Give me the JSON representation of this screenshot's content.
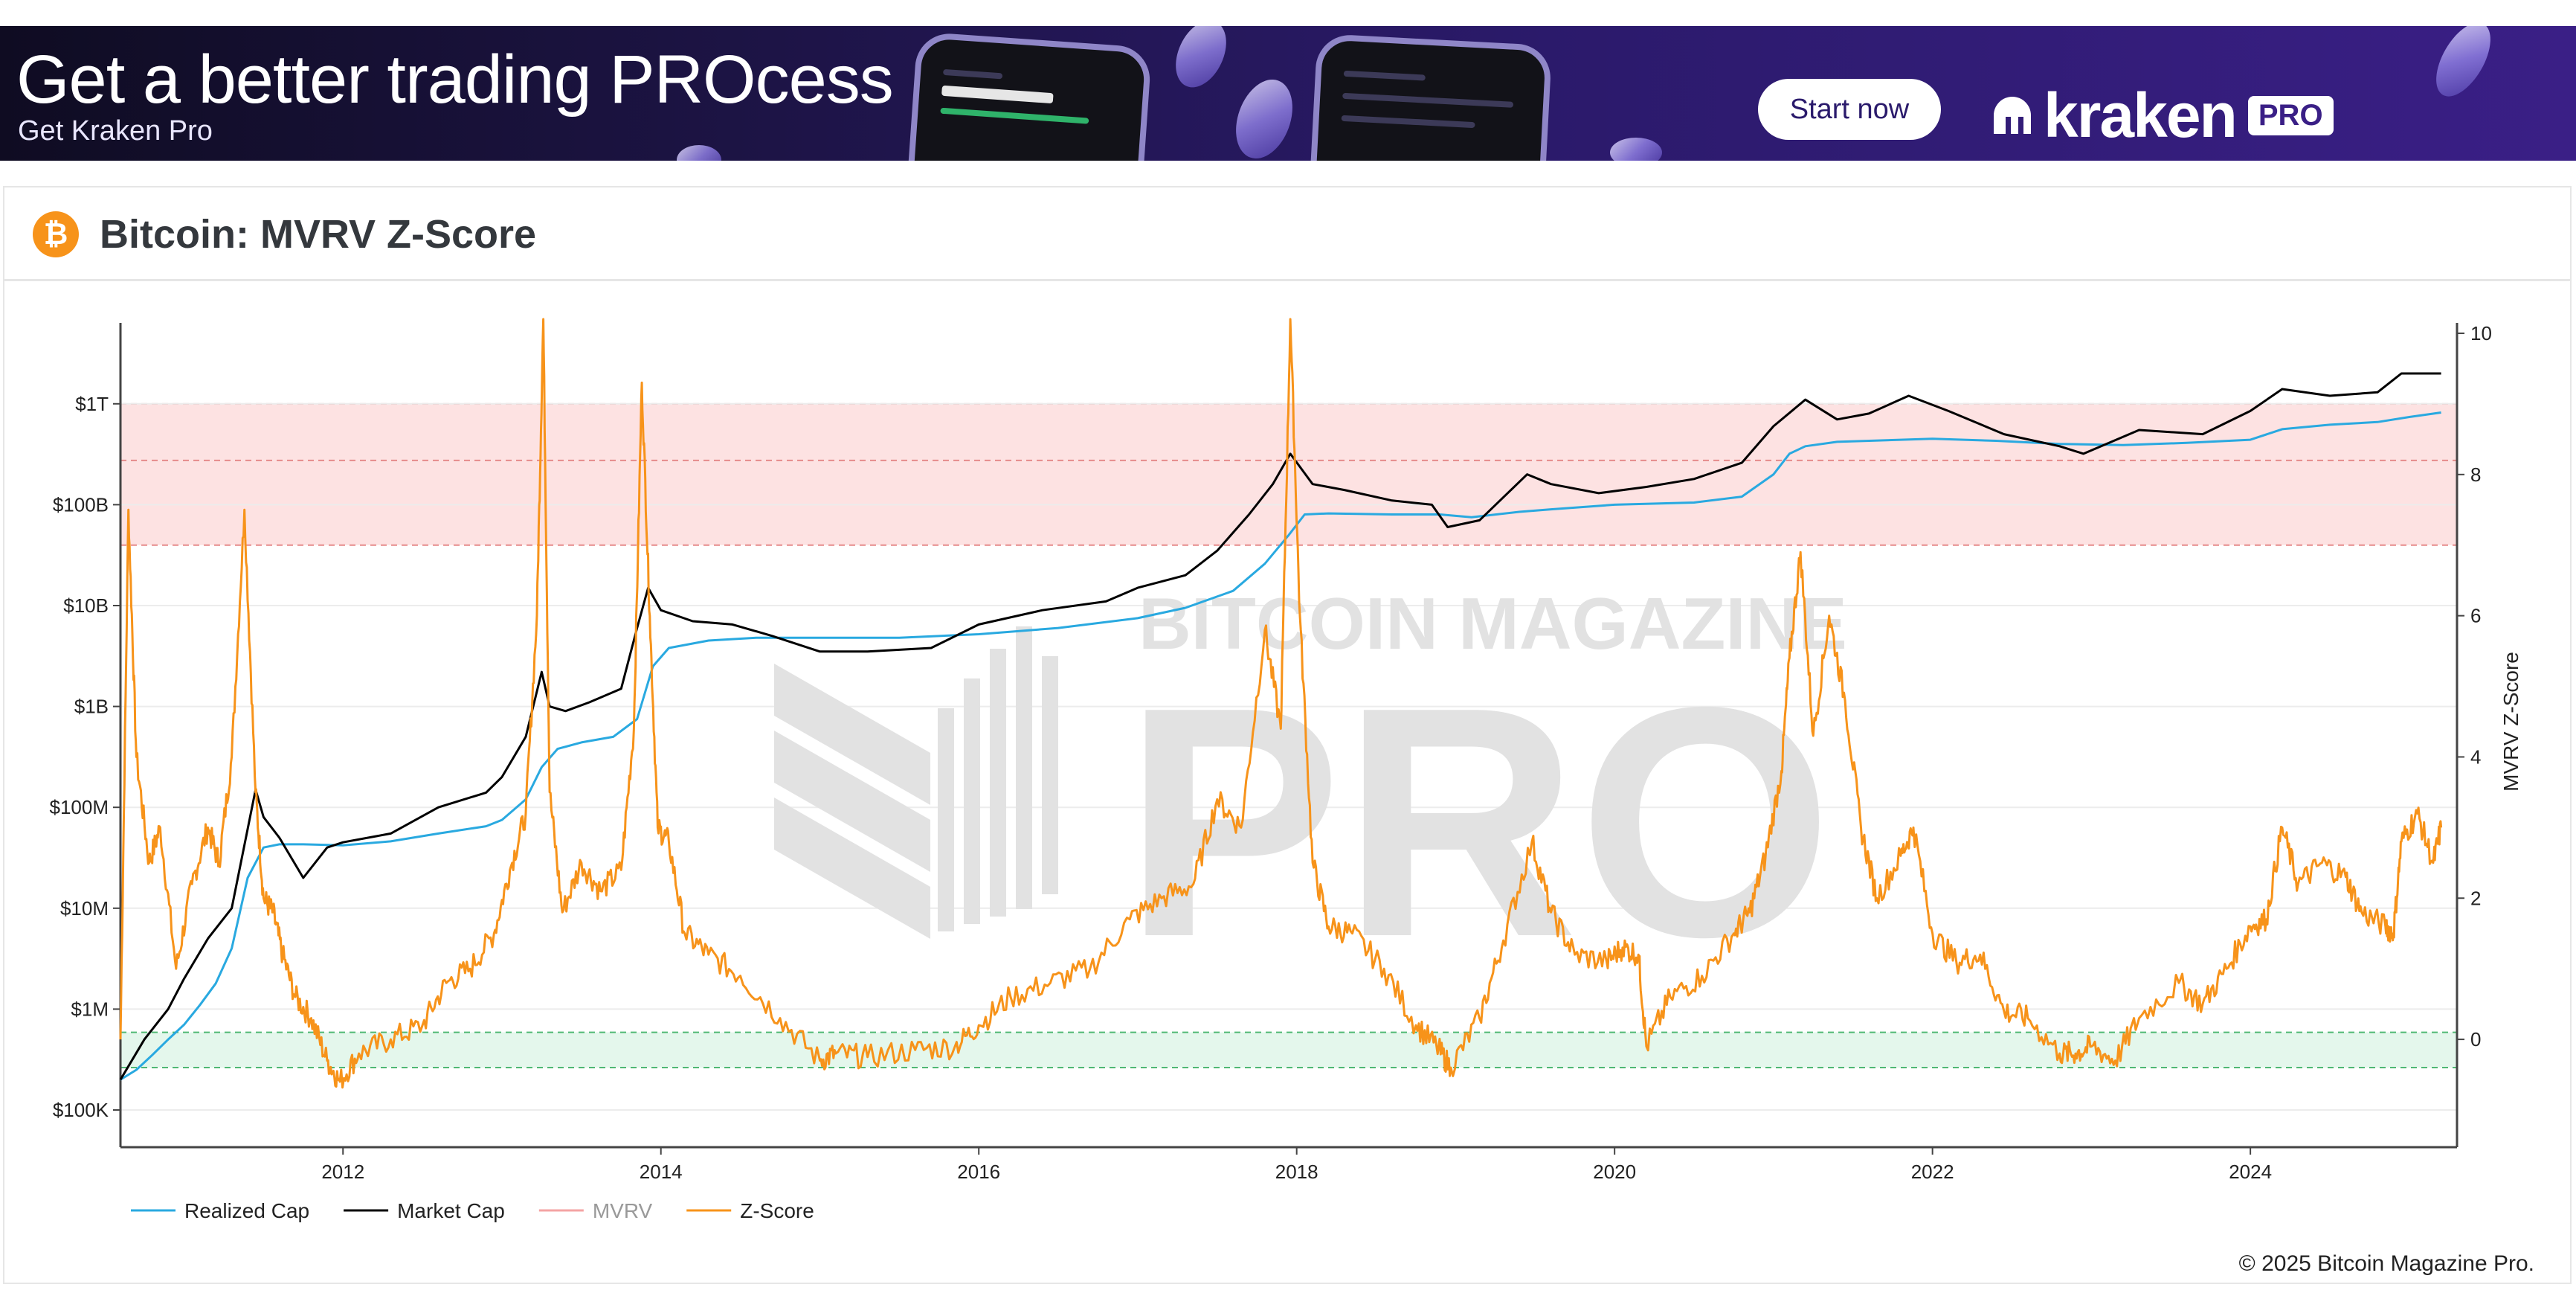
{
  "ad": {
    "headline": "Get a better trading PROcess",
    "subline": "Get Kraken Pro",
    "cta_label": "Start now",
    "brand_word": "kraken",
    "brand_badge": "PRO"
  },
  "header": {
    "icon_symbol": "₿",
    "title": "Bitcoin: MVRV Z-Score"
  },
  "watermark": {
    "line1": "BITCOIN MAGAZINE",
    "line2": "PRO"
  },
  "footer": {
    "copyright": "© 2025 Bitcoin Magazine Pro."
  },
  "colors": {
    "realized_cap": "#29a9e0",
    "market_cap": "#000000",
    "mvrv": "#f4a3a3",
    "zscore": "#f7931a",
    "red_zone": "#fde2e2",
    "green_zone": "#e4f7ec",
    "brand_accent": "#f7931a"
  },
  "chart_data": {
    "type": "line",
    "title": "",
    "y_left": {
      "scale": "log",
      "tick_labels": [
        "$1T",
        "$100B",
        "$10B",
        "$1B",
        "$100M",
        "$10M",
        "$1M",
        "$100K"
      ],
      "tick_values": [
        1000000000000.0,
        100000000000.0,
        10000000000.0,
        1000000000.0,
        100000000.0,
        10000000.0,
        1000000.0,
        100000.0
      ],
      "range": [
        100000.0,
        5000000000000.0
      ]
    },
    "y_right": {
      "label": "MVRV Z-Score",
      "tick_labels": [
        "10",
        "8",
        "6",
        "4",
        "2",
        "0"
      ],
      "tick_values": [
        10,
        8,
        6,
        4,
        2,
        0
      ],
      "range": [
        -1,
        10
      ]
    },
    "x": {
      "tick_labels": [
        "2012",
        "2014",
        "2016",
        "2018",
        "2020",
        "2022",
        "2024"
      ],
      "tick_values": [
        2012,
        2014,
        2016,
        2018,
        2020,
        2022,
        2024
      ],
      "range": [
        2010.6,
        2025.3
      ]
    },
    "zones": [
      {
        "name": "red",
        "z_from": 7,
        "z_to": 9
      },
      {
        "name": "green",
        "z_from": -0.4,
        "z_to": 0.1
      }
    ],
    "zone_dashed_lines_z": [
      9,
      8.2,
      7,
      0.1,
      -0.4
    ],
    "legend_position": "bottom-left",
    "series": [
      {
        "name": "Realized Cap",
        "axis": "left",
        "x": [
          2010.6,
          2010.7,
          2010.8,
          2010.9,
          2011.0,
          2011.1,
          2011.2,
          2011.3,
          2011.4,
          2011.5,
          2011.6,
          2011.75,
          2012.0,
          2012.3,
          2012.6,
          2012.9,
          2013.0,
          2013.15,
          2013.25,
          2013.35,
          2013.5,
          2013.7,
          2013.85,
          2013.95,
          2014.05,
          2014.3,
          2014.6,
          2015.0,
          2015.5,
          2016.0,
          2016.5,
          2017.0,
          2017.3,
          2017.6,
          2017.8,
          2017.95,
          2018.05,
          2018.2,
          2018.6,
          2018.9,
          2019.1,
          2019.4,
          2019.6,
          2020.0,
          2020.5,
          2020.8,
          2021.0,
          2021.1,
          2021.2,
          2021.4,
          2021.8,
          2022.0,
          2022.4,
          2022.8,
          2023.2,
          2023.6,
          2024.0,
          2024.2,
          2024.5,
          2024.8,
          2025.0,
          2025.2
        ],
        "values": [
          200000.0,
          250000.0,
          350000.0,
          500000.0,
          700000.0,
          1100000.0,
          1800000.0,
          4000000.0,
          20000000.0,
          40000000.0,
          43000000.0,
          43000000.0,
          42000000.0,
          46000000.0,
          55000000.0,
          65000000.0,
          75000000.0,
          120000000.0,
          250000000.0,
          380000000.0,
          440000000.0,
          500000000.0,
          750000000.0,
          2500000000.0,
          3800000000.0,
          4500000000.0,
          4800000000.0,
          4800000000.0,
          4800000000.0,
          5200000000.0,
          6000000000.0,
          7500000000.0,
          9500000000.0,
          14000000000.0,
          26000000000.0,
          50000000000.0,
          80000000000.0,
          82000000000.0,
          80000000000.0,
          80000000000.0,
          75000000000.0,
          85000000000.0,
          90000000000.0,
          100000000000.0,
          105000000000.0,
          120000000000.0,
          200000000000.0,
          320000000000.0,
          380000000000.0,
          420000000000.0,
          440000000000.0,
          450000000000.0,
          430000000000.0,
          400000000000.0,
          390000000000.0,
          410000000000.0,
          440000000000.0,
          560000000000.0,
          620000000000.0,
          660000000000.0,
          740000000000.0,
          820000000000.0
        ]
      },
      {
        "name": "Market Cap",
        "axis": "left",
        "x": [
          2010.6,
          2010.75,
          2010.9,
          2011.0,
          2011.15,
          2011.3,
          2011.45,
          2011.5,
          2011.6,
          2011.75,
          2011.9,
          2012.0,
          2012.3,
          2012.6,
          2012.9,
          2013.0,
          2013.15,
          2013.25,
          2013.3,
          2013.4,
          2013.55,
          2013.75,
          2013.85,
          2013.92,
          2014.0,
          2014.2,
          2014.45,
          2014.7,
          2015.0,
          2015.3,
          2015.7,
          2016.0,
          2016.4,
          2016.8,
          2017.0,
          2017.3,
          2017.5,
          2017.7,
          2017.85,
          2017.96,
          2018.1,
          2018.3,
          2018.6,
          2018.85,
          2018.95,
          2019.15,
          2019.45,
          2019.6,
          2019.9,
          2020.2,
          2020.5,
          2020.8,
          2021.0,
          2021.2,
          2021.4,
          2021.6,
          2021.85,
          2022.1,
          2022.45,
          2022.8,
          2022.95,
          2023.3,
          2023.7,
          2024.0,
          2024.2,
          2024.5,
          2024.8,
          2024.95,
          2025.2
        ],
        "values": [
          200000.0,
          500000.0,
          1000000.0,
          2000000.0,
          5000000.0,
          10000000.0,
          150000000.0,
          80000000.0,
          50000000.0,
          20000000.0,
          40000000.0,
          45000000.0,
          55000000.0,
          100000000.0,
          140000000.0,
          200000000.0,
          500000000.0,
          2200000000.0,
          1000000000.0,
          900000000.0,
          1100000000.0,
          1500000000.0,
          6000000000.0,
          15000000000.0,
          9000000000.0,
          7000000000.0,
          6500000000.0,
          5000000000.0,
          3500000000.0,
          3500000000.0,
          3800000000.0,
          6500000000.0,
          9000000000.0,
          11000000000.0,
          15000000000.0,
          20000000000.0,
          35000000000.0,
          80000000000.0,
          160000000000.0,
          320000000000.0,
          160000000000.0,
          140000000000.0,
          110000000000.0,
          100000000000.0,
          60000000000.0,
          70000000000.0,
          200000000000.0,
          160000000000.0,
          130000000000.0,
          150000000000.0,
          180000000000.0,
          260000000000.0,
          600000000000.0,
          1100000000000.0,
          700000000000.0,
          800000000000.0,
          1200000000000.0,
          850000000000.0,
          500000000000.0,
          380000000000.0,
          320000000000.0,
          550000000000.0,
          500000000000.0,
          850000000000.0,
          1400000000000.0,
          1200000000000.0,
          1300000000000.0,
          2000000000000.0,
          2000000000000.0
        ]
      },
      {
        "name": "MVRV",
        "axis": "right",
        "x": [],
        "values": []
      },
      {
        "name": "Z-Score",
        "axis": "right",
        "x": [
          2010.6,
          2010.65,
          2010.7,
          2010.78,
          2010.85,
          2010.95,
          2011.05,
          2011.15,
          2011.22,
          2011.3,
          2011.38,
          2011.45,
          2011.5,
          2011.56,
          2011.62,
          2011.7,
          2011.8,
          2011.9,
          2011.98,
          2012.1,
          2012.3,
          2012.5,
          2012.65,
          2012.8,
          2012.95,
          2013.05,
          2013.15,
          2013.22,
          2013.26,
          2013.3,
          2013.38,
          2013.5,
          2013.62,
          2013.75,
          2013.83,
          2013.88,
          2013.93,
          2013.98,
          2014.05,
          2014.15,
          2014.3,
          2014.5,
          2014.75,
          2015.0,
          2015.1,
          2015.3,
          2015.6,
          2015.85,
          2016.0,
          2016.2,
          2016.45,
          2016.7,
          2016.95,
          2017.15,
          2017.35,
          2017.5,
          2017.65,
          2017.8,
          2017.9,
          2017.96,
          2018.02,
          2018.1,
          2018.2,
          2018.35,
          2018.55,
          2018.75,
          2018.88,
          2018.97,
          2019.15,
          2019.3,
          2019.48,
          2019.6,
          2019.75,
          2019.95,
          2020.05,
          2020.15,
          2020.2,
          2020.35,
          2020.55,
          2020.75,
          2020.85,
          2020.95,
          2021.05,
          2021.1,
          2021.17,
          2021.25,
          2021.35,
          2021.45,
          2021.55,
          2021.65,
          2021.8,
          2021.88,
          2022.0,
          2022.15,
          2022.3,
          2022.45,
          2022.6,
          2022.8,
          2022.9,
          2023.0,
          2023.15,
          2023.3,
          2023.55,
          2023.7,
          2023.85,
          2024.0,
          2024.1,
          2024.2,
          2024.3,
          2024.45,
          2024.6,
          2024.7,
          2024.85,
          2024.9,
          2024.95,
          2025.05,
          2025.15,
          2025.2
        ],
        "values": [
          0.0,
          7.5,
          4.0,
          2.5,
          3.0,
          1.0,
          2.2,
          3.0,
          2.5,
          4.0,
          7.5,
          3.5,
          2.0,
          1.8,
          1.2,
          0.6,
          0.3,
          -0.3,
          -0.6,
          -0.2,
          0.0,
          0.2,
          0.8,
          1.0,
          1.5,
          2.4,
          3.2,
          6.0,
          10.2,
          3.5,
          1.8,
          2.5,
          2.1,
          2.4,
          4.4,
          9.3,
          6.0,
          3.0,
          2.8,
          1.5,
          1.2,
          0.9,
          0.3,
          -0.3,
          -0.2,
          -0.25,
          -0.15,
          -0.1,
          0.2,
          0.6,
          0.8,
          1.0,
          1.7,
          2.0,
          2.2,
          3.4,
          3.0,
          5.8,
          4.4,
          10.2,
          6.0,
          2.5,
          1.6,
          1.5,
          1.0,
          0.2,
          -0.1,
          -0.4,
          0.3,
          1.4,
          2.8,
          1.8,
          1.2,
          1.1,
          1.3,
          1.2,
          -0.1,
          0.6,
          0.9,
          1.5,
          1.8,
          2.6,
          3.8,
          5.4,
          6.9,
          4.3,
          6.0,
          4.8,
          3.0,
          2.0,
          2.6,
          3.0,
          1.5,
          1.1,
          1.2,
          0.4,
          0.3,
          -0.2,
          -0.2,
          -0.1,
          -0.3,
          0.3,
          0.8,
          0.5,
          1.0,
          1.6,
          1.7,
          3.0,
          2.2,
          2.5,
          2.3,
          1.8,
          1.6,
          1.5,
          2.8,
          3.2,
          2.5,
          3.0
        ]
      }
    ]
  }
}
